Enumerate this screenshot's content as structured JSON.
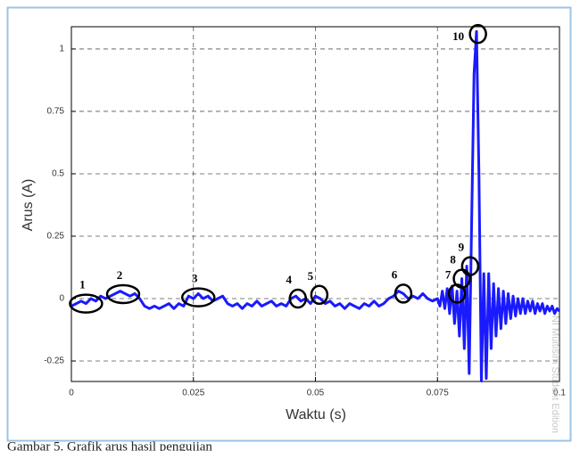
{
  "chart_data": {
    "type": "line",
    "xlabel": "Waktu (s)",
    "ylabel": "Arus (A)",
    "watermark": "NI Multisim Student Edition",
    "caption": "Gambar 5. Grafik arus hasil pengujian",
    "xlim": [
      0,
      0.1
    ],
    "ylim": [
      -0.332,
      1.089
    ],
    "xticks": [
      0,
      0.025,
      0.05,
      0.075,
      0.1
    ],
    "yticks": [
      -0.25,
      0,
      0.25,
      0.5,
      0.75,
      1
    ],
    "grid": true,
    "x": [
      0,
      0.001,
      0.002,
      0.003,
      0.004,
      0.005,
      0.006,
      0.007,
      0.008,
      0.009,
      0.01,
      0.011,
      0.012,
      0.013,
      0.014,
      0.015,
      0.016,
      0.017,
      0.018,
      0.019,
      0.02,
      0.021,
      0.022,
      0.023,
      0.024,
      0.025,
      0.026,
      0.027,
      0.028,
      0.029,
      0.03,
      0.031,
      0.032,
      0.033,
      0.034,
      0.035,
      0.036,
      0.037,
      0.038,
      0.039,
      0.04,
      0.041,
      0.042,
      0.043,
      0.044,
      0.045,
      0.046,
      0.047,
      0.048,
      0.049,
      0.05,
      0.051,
      0.052,
      0.053,
      0.054,
      0.055,
      0.056,
      0.057,
      0.058,
      0.059,
      0.06,
      0.061,
      0.062,
      0.063,
      0.064,
      0.065,
      0.066,
      0.067,
      0.068,
      0.069,
      0.07,
      0.071,
      0.072,
      0.073,
      0.074,
      0.075,
      0.0755,
      0.076,
      0.0765,
      0.077,
      0.0775,
      0.078,
      0.0785,
      0.079,
      0.0795,
      0.08,
      0.0805,
      0.081,
      0.0815,
      0.082,
      0.0825,
      0.083,
      0.0835,
      0.084,
      0.0845,
      0.085,
      0.0855,
      0.086,
      0.0865,
      0.087,
      0.0875,
      0.088,
      0.0885,
      0.089,
      0.0895,
      0.09,
      0.0905,
      0.091,
      0.0915,
      0.092,
      0.0925,
      0.093,
      0.0935,
      0.094,
      0.0945,
      0.095,
      0.0955,
      0.096,
      0.0965,
      0.097,
      0.0975,
      0.098,
      0.0985,
      0.099,
      0.0995,
      0.1
    ],
    "series": [
      {
        "color": "#1a1aff",
        "values": [
          -0.03,
          -0.02,
          -0.01,
          -0.02,
          0.0,
          -0.01,
          0.01,
          0.0,
          0.01,
          0.02,
          0.03,
          0.02,
          0.01,
          0.02,
          0.0,
          -0.03,
          -0.04,
          -0.03,
          -0.04,
          -0.03,
          -0.02,
          -0.04,
          -0.02,
          -0.03,
          0.01,
          0.0,
          0.02,
          0.0,
          0.01,
          -0.01,
          0.0,
          0.01,
          -0.02,
          -0.03,
          -0.02,
          -0.04,
          -0.02,
          -0.03,
          -0.01,
          -0.03,
          -0.02,
          -0.01,
          -0.03,
          -0.02,
          -0.03,
          0.0,
          0.01,
          -0.01,
          0.0,
          -0.02,
          0.01,
          0.0,
          -0.02,
          -0.01,
          -0.03,
          -0.02,
          -0.04,
          -0.02,
          -0.03,
          -0.04,
          -0.02,
          -0.03,
          -0.01,
          -0.03,
          -0.02,
          0.0,
          0.01,
          0.03,
          0.02,
          0.0,
          0.01,
          0.0,
          0.02,
          0.0,
          -0.01,
          0.0,
          -0.03,
          0.03,
          -0.04,
          0.04,
          -0.06,
          0.05,
          -0.1,
          0.03,
          -0.15,
          0.08,
          -0.2,
          0.13,
          -0.3,
          0.3,
          0.9,
          1.07,
          0.5,
          -0.33,
          0.1,
          -0.32,
          0.1,
          -0.2,
          0.06,
          -0.15,
          0.04,
          -0.12,
          0.03,
          -0.1,
          0.02,
          -0.08,
          0.01,
          -0.07,
          0.0,
          -0.06,
          0.0,
          -0.06,
          -0.01,
          -0.05,
          -0.01,
          -0.06,
          -0.02,
          -0.05,
          -0.02,
          -0.06,
          -0.03,
          -0.05,
          -0.03,
          -0.06,
          -0.04,
          -0.05
        ]
      }
    ],
    "annotations": [
      {
        "label": "1",
        "x": 0.003,
        "y": -0.02
      },
      {
        "label": "2",
        "x": 0.0106,
        "y": 0.018
      },
      {
        "label": "3",
        "x": 0.026,
        "y": 0.005
      },
      {
        "label": "4",
        "x": 0.0464,
        "y": 0.0
      },
      {
        "label": "5",
        "x": 0.0508,
        "y": 0.015
      },
      {
        "label": "6",
        "x": 0.068,
        "y": 0.02
      },
      {
        "label": "7",
        "x": 0.079,
        "y": 0.02
      },
      {
        "label": "8",
        "x": 0.08,
        "y": 0.08
      },
      {
        "label": "9",
        "x": 0.0817,
        "y": 0.13
      },
      {
        "label": "10",
        "x": 0.0833,
        "y": 1.06
      }
    ]
  }
}
